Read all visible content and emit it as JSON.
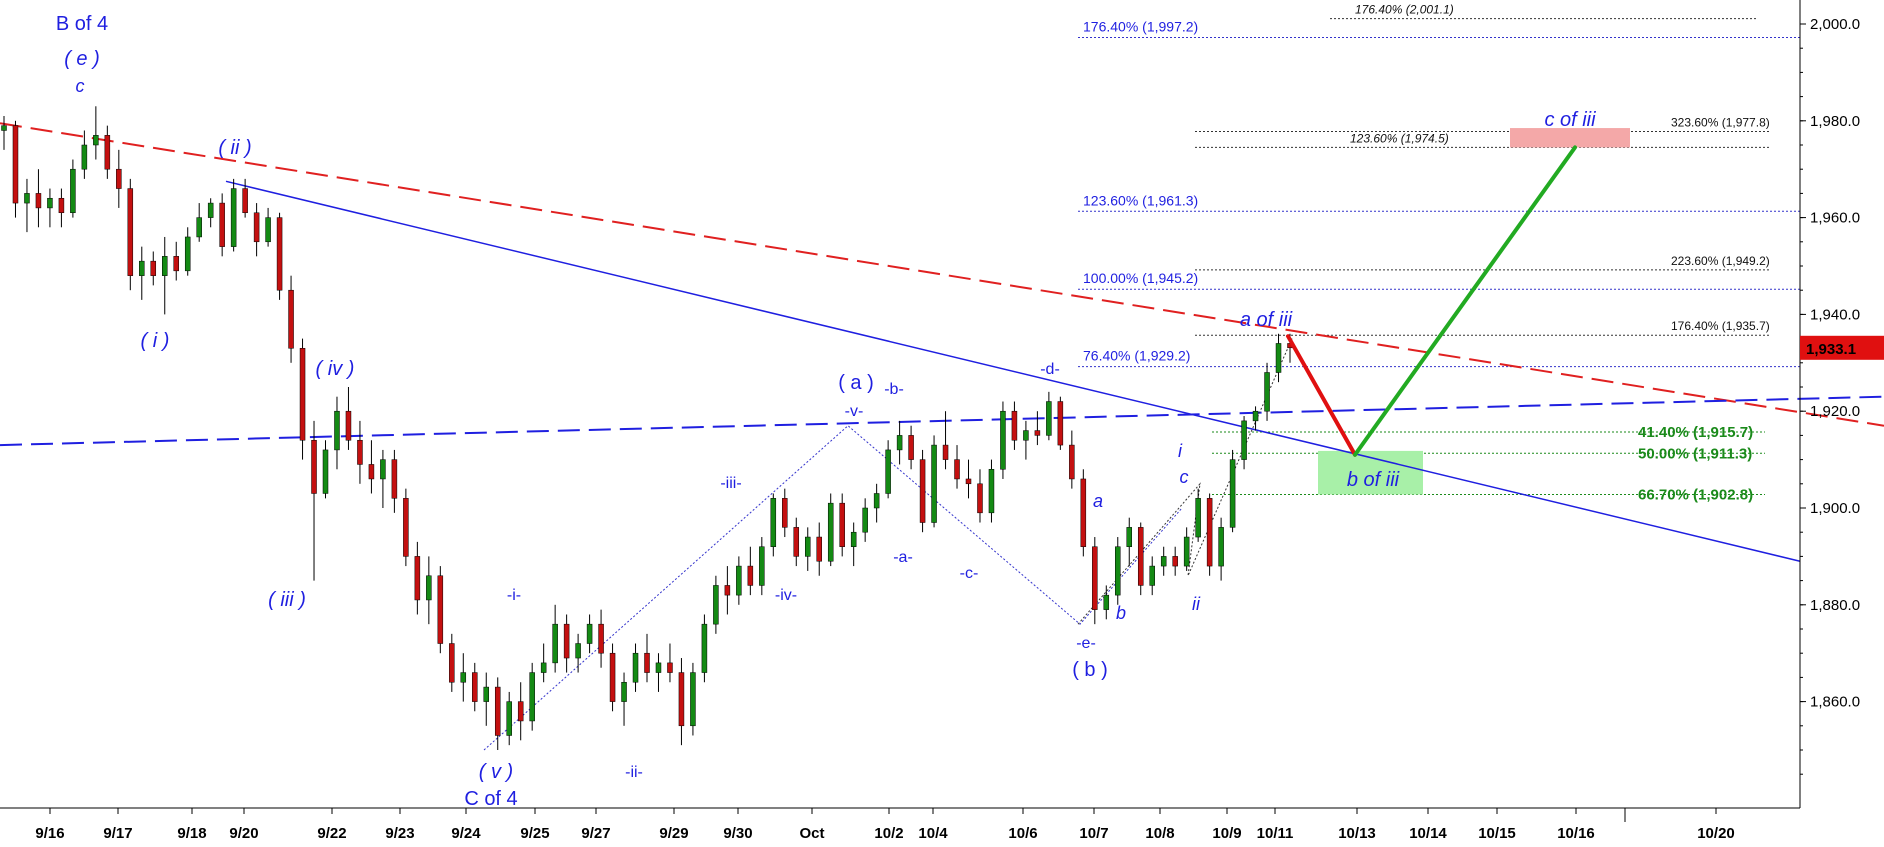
{
  "chart_data": {
    "type": "candlestick",
    "price_axis": {
      "ticks": [
        "2,000.0",
        "1,980.0",
        "1,960.0",
        "1,940.0",
        "1,920.0",
        "1,900.0",
        "1,880.0",
        "1,860.0"
      ],
      "tick_values": [
        2000,
        1980,
        1960,
        1940,
        1920,
        1900,
        1880,
        1860
      ],
      "ylim": [
        1840,
        2003
      ],
      "last_price": "1,933.1",
      "last_price_value": 1933.1
    },
    "x_axis": {
      "ticks": [
        "9/16",
        "9/17",
        "9/18",
        "9/20",
        "9/22",
        "9/23",
        "9/24",
        "9/25",
        "9/27",
        "9/29",
        "9/30",
        "Oct",
        "10/2",
        "10/4",
        "10/6",
        "10/7",
        "10/8",
        "10/9",
        "10/11",
        "10/13",
        "10/14",
        "10/15",
        "10/16",
        "10/20"
      ]
    },
    "fib_levels_blue": [
      {
        "label": "176.40% (1,997.2)",
        "value": 1997.2
      },
      {
        "label": "123.60% (1,961.3)",
        "value": 1961.3
      },
      {
        "label": "100.00% (1,945.2)",
        "value": 1945.2
      },
      {
        "label": "76.40% (1,929.2)",
        "value": 1929.2
      }
    ],
    "fib_levels_black": [
      {
        "label": "176.40% (2,001.1)",
        "value": 2001.1,
        "italic": true
      },
      {
        "label": "323.60% (1,977.8)",
        "value": 1977.8,
        "italic": false
      },
      {
        "label": "123.60% (1,974.5)",
        "value": 1974.5,
        "italic": true
      },
      {
        "label": "223.60% (1,949.2)",
        "value": 1949.2,
        "italic": false
      },
      {
        "label": "176.40% (1,935.7)",
        "value": 1935.7,
        "italic": false
      }
    ],
    "fib_levels_green": [
      {
        "label": "41.40% (1,915.7)",
        "value": 1915.7
      },
      {
        "label": "50.00% (1,911.3)",
        "value": 1911.3
      },
      {
        "label": "66.70% (1,902.8)",
        "value": 1902.8
      }
    ],
    "wave_labels": [
      "B of 4",
      "( e )",
      "c",
      "( ii )",
      "( i )",
      "( iv )",
      "( iii )",
      "-i-",
      "( v )",
      "C of 4",
      "-ii-",
      "-iii-",
      "-iv-",
      "( a )",
      "-v-",
      "-b-",
      "-a-",
      "-c-",
      "-d-",
      "-e-",
      "( b )",
      "a",
      "b",
      "c",
      "i",
      "ii",
      "a of iii",
      "b of iii",
      "c of iii"
    ],
    "target_boxes": [
      {
        "label": "c of iii",
        "color": "#f4a8a8",
        "low": 1974.5,
        "high": 1978.5
      },
      {
        "label": "b of iii",
        "color": "#a8f0a8",
        "low": 1902.8,
        "high": 1911.8
      }
    ],
    "projection": [
      {
        "from_label": "a of iii",
        "from": 1935.5,
        "to": 1911.0,
        "color": "#e01010"
      },
      {
        "from_label": "b of iii",
        "from": 1911.0,
        "to": 1974.5,
        "color": "#22aa22"
      }
    ],
    "candles": [
      [
        1978.0,
        1981.0,
        1974.0,
        1979.0
      ],
      [
        1979.0,
        1980.0,
        1960.0,
        1963.0
      ],
      [
        1963.0,
        1968.0,
        1957.0,
        1965.0
      ],
      [
        1965.0,
        1970.0,
        1958.0,
        1962.0
      ],
      [
        1962.0,
        1966.0,
        1958.0,
        1964.0
      ],
      [
        1964.0,
        1966.0,
        1958.0,
        1961.0
      ],
      [
        1961.0,
        1972.0,
        1960.0,
        1970.0
      ],
      [
        1970.0,
        1978.0,
        1968.0,
        1975.0
      ],
      [
        1975.0,
        1983.0,
        1972.0,
        1977.0
      ],
      [
        1977.0,
        1979.0,
        1968.0,
        1970.0
      ],
      [
        1970.0,
        1974.0,
        1962.0,
        1966.0
      ],
      [
        1966.0,
        1968.0,
        1945.0,
        1948.0
      ],
      [
        1948.0,
        1954.0,
        1943.0,
        1951.0
      ],
      [
        1951.0,
        1953.0,
        1946.0,
        1948.0
      ],
      [
        1948.0,
        1956.0,
        1940.0,
        1952.0
      ],
      [
        1952.0,
        1955.0,
        1947.0,
        1949.0
      ],
      [
        1949.0,
        1958.0,
        1948.0,
        1956.0
      ],
      [
        1956.0,
        1963.0,
        1955.0,
        1960.0
      ],
      [
        1960.0,
        1964.0,
        1958.0,
        1963.0
      ],
      [
        1963.0,
        1965.0,
        1952.0,
        1954.0
      ],
      [
        1954.0,
        1968.0,
        1953.0,
        1966.0
      ],
      [
        1966.0,
        1968.0,
        1960.0,
        1961.0
      ],
      [
        1961.0,
        1963.0,
        1952.0,
        1955.0
      ],
      [
        1955.0,
        1962.0,
        1954.0,
        1960.0
      ],
      [
        1960.0,
        1961.0,
        1943.0,
        1945.0
      ],
      [
        1945.0,
        1948.0,
        1930.0,
        1933.0
      ],
      [
        1933.0,
        1935.0,
        1910.0,
        1914.0
      ],
      [
        1914.0,
        1918.0,
        1885.0,
        1903.0
      ],
      [
        1903.0,
        1914.0,
        1902.0,
        1912.0
      ],
      [
        1912.0,
        1923.0,
        1908.0,
        1920.0
      ],
      [
        1920.0,
        1925.0,
        1912.0,
        1914.0
      ],
      [
        1914.0,
        1918.0,
        1905.0,
        1909.0
      ],
      [
        1909.0,
        1914.0,
        1903.0,
        1906.0
      ],
      [
        1906.0,
        1912.0,
        1900.0,
        1910.0
      ],
      [
        1910.0,
        1912.0,
        1899.0,
        1902.0
      ],
      [
        1902.0,
        1904.0,
        1888.0,
        1890.0
      ],
      [
        1890.0,
        1893.0,
        1878.0,
        1881.0
      ],
      [
        1881.0,
        1890.0,
        1876.0,
        1886.0
      ],
      [
        1886.0,
        1888.0,
        1870.0,
        1872.0
      ],
      [
        1872.0,
        1874.0,
        1862.0,
        1864.0
      ],
      [
        1864.0,
        1870.0,
        1860.0,
        1866.0
      ],
      [
        1866.0,
        1868.0,
        1858.0,
        1860.0
      ],
      [
        1860.0,
        1866.0,
        1855.0,
        1863.0
      ],
      [
        1863.0,
        1865.0,
        1850.0,
        1853.0
      ],
      [
        1853.0,
        1862.0,
        1851.0,
        1860.0
      ],
      [
        1860.0,
        1864.0,
        1852.0,
        1856.0
      ],
      [
        1856.0,
        1868.0,
        1854.0,
        1866.0
      ],
      [
        1866.0,
        1872.0,
        1864.0,
        1868.0
      ],
      [
        1868.0,
        1880.0,
        1866.0,
        1876.0
      ],
      [
        1876.0,
        1878.0,
        1866.0,
        1869.0
      ],
      [
        1869.0,
        1874.0,
        1866.0,
        1872.0
      ],
      [
        1872.0,
        1878.0,
        1870.0,
        1876.0
      ],
      [
        1876.0,
        1879.0,
        1867.0,
        1870.0
      ],
      [
        1870.0,
        1872.0,
        1858.0,
        1860.0
      ],
      [
        1860.0,
        1866.0,
        1855.0,
        1864.0
      ],
      [
        1864.0,
        1872.0,
        1862.0,
        1870.0
      ],
      [
        1870.0,
        1874.0,
        1864.0,
        1866.0
      ],
      [
        1866.0,
        1870.0,
        1862.0,
        1868.0
      ],
      [
        1868.0,
        1872.0,
        1864.0,
        1866.0
      ],
      [
        1866.0,
        1869.0,
        1851.0,
        1855.0
      ],
      [
        1855.0,
        1868.0,
        1853.0,
        1866.0
      ],
      [
        1866.0,
        1878.0,
        1864.0,
        1876.0
      ],
      [
        1876.0,
        1886.0,
        1874.0,
        1884.0
      ],
      [
        1884.0,
        1888.0,
        1878.0,
        1882.0
      ],
      [
        1882.0,
        1890.0,
        1880.0,
        1888.0
      ],
      [
        1888.0,
        1892.0,
        1882.0,
        1884.0
      ],
      [
        1884.0,
        1894.0,
        1882.0,
        1892.0
      ],
      [
        1892.0,
        1903.0,
        1890.0,
        1902.0
      ],
      [
        1902.0,
        1904.0,
        1894.0,
        1896.0
      ],
      [
        1896.0,
        1898.0,
        1888.0,
        1890.0
      ],
      [
        1890.0,
        1896.0,
        1887.0,
        1894.0
      ],
      [
        1894.0,
        1897.0,
        1886.0,
        1889.0
      ],
      [
        1889.0,
        1903.0,
        1888.0,
        1901.0
      ],
      [
        1901.0,
        1903.0,
        1890.0,
        1892.0
      ],
      [
        1892.0,
        1897.0,
        1888.0,
        1895.0
      ],
      [
        1895.0,
        1902.0,
        1893.0,
        1900.0
      ],
      [
        1900.0,
        1905.0,
        1897.0,
        1903.0
      ],
      [
        1903.0,
        1914.0,
        1902.0,
        1912.0
      ],
      [
        1912.0,
        1918.0,
        1909.0,
        1915.0
      ],
      [
        1915.0,
        1917.0,
        1908.0,
        1910.0
      ],
      [
        1910.0,
        1912.0,
        1895.0,
        1897.0
      ],
      [
        1897.0,
        1915.0,
        1896.0,
        1913.0
      ],
      [
        1913.0,
        1920.0,
        1908.0,
        1910.0
      ],
      [
        1910.0,
        1913.0,
        1904.0,
        1906.0
      ],
      [
        1906.0,
        1910.0,
        1902.0,
        1905.0
      ],
      [
        1905.0,
        1908.0,
        1897.0,
        1899.0
      ],
      [
        1899.0,
        1910.0,
        1897.0,
        1908.0
      ],
      [
        1908.0,
        1922.0,
        1906.0,
        1920.0
      ],
      [
        1920.0,
        1922.0,
        1912.0,
        1914.0
      ],
      [
        1914.0,
        1918.0,
        1910.0,
        1916.0
      ],
      [
        1916.0,
        1920.0,
        1913.0,
        1915.0
      ],
      [
        1915.0,
        1924.0,
        1914.0,
        1922.0
      ],
      [
        1922.0,
        1923.0,
        1912.0,
        1913.0
      ],
      [
        1913.0,
        1916.0,
        1904.0,
        1906.0
      ],
      [
        1906.0,
        1908.0,
        1890.0,
        1892.0
      ],
      [
        1892.0,
        1894.0,
        1876.0,
        1879.0
      ],
      [
        1879.0,
        1884.0,
        1877.0,
        1882.0
      ],
      [
        1882.0,
        1894.0,
        1880.0,
        1892.0
      ],
      [
        1892.0,
        1898.0,
        1888.0,
        1896.0
      ],
      [
        1896.0,
        1897.0,
        1882.0,
        1884.0
      ],
      [
        1884.0,
        1890.0,
        1882.0,
        1888.0
      ],
      [
        1888.0,
        1892.0,
        1886.0,
        1890.0
      ],
      [
        1890.0,
        1892.0,
        1886.0,
        1888.0
      ],
      [
        1888.0,
        1896.0,
        1887.0,
        1894.0
      ],
      [
        1894.0,
        1904.0,
        1893.0,
        1902.0
      ],
      [
        1902.0,
        1903.0,
        1886.0,
        1888.0
      ],
      [
        1888.0,
        1898.0,
        1885.0,
        1896.0
      ],
      [
        1896.0,
        1912.0,
        1895.0,
        1910.0
      ],
      [
        1910.0,
        1919.0,
        1908.0,
        1918.0
      ],
      [
        1918.0,
        1921.0,
        1916.0,
        1920.0
      ],
      [
        1920.0,
        1930.0,
        1918.0,
        1928.0
      ],
      [
        1928.0,
        1936.0,
        1926.0,
        1934.0
      ],
      [
        1934.0,
        1936.0,
        1930.0,
        1933.1
      ]
    ]
  }
}
